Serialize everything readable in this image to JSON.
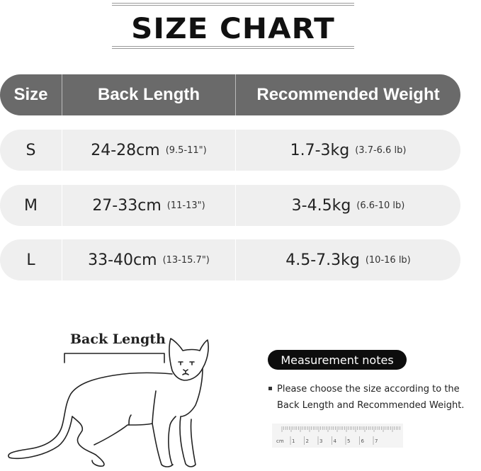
{
  "title": "SIZE CHART",
  "table": {
    "headers": [
      "Size",
      "Back Length",
      "Recommended Weight"
    ],
    "rows": [
      {
        "size": "S",
        "back_length": "24-28cm",
        "back_length_in": "(9.5-11\")",
        "weight": "1.7-3kg",
        "weight_lb": "(3.7-6.6 lb)"
      },
      {
        "size": "M",
        "back_length": "27-33cm",
        "back_length_in": "(11-13\")",
        "weight": "3-4.5kg",
        "weight_lb": "(6.6-10 lb)"
      },
      {
        "size": "L",
        "back_length": "33-40cm",
        "back_length_in": "(13-15.7\")",
        "weight": "4.5-7.3kg",
        "weight_lb": "(10-16 lb)"
      }
    ],
    "header_color": "#6a6a6a",
    "row_color": "#efefef"
  },
  "illustration": {
    "label": "Back Length",
    "icon": "cat-outline-icon"
  },
  "notes": {
    "title": "Measurement notes",
    "items": [
      "Please choose the size according to the Back Length and Recommended Weight."
    ],
    "ruler": {
      "unit": "cm",
      "labels": [
        "1",
        "2",
        "3",
        "4",
        "5",
        "6",
        "7"
      ]
    }
  }
}
